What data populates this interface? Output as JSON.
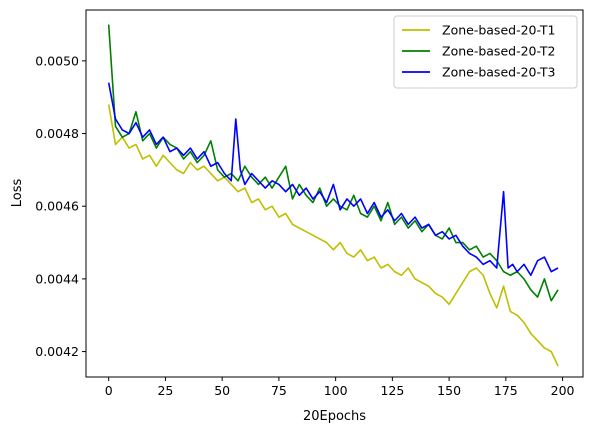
{
  "chart_data": {
    "type": "line",
    "xlabel": "20Epochs",
    "ylabel": "Loss",
    "xlim": [
      -10,
      209
    ],
    "ylim": [
      0.00413,
      0.00514
    ],
    "x_ticks": [
      0,
      25,
      50,
      75,
      100,
      125,
      150,
      175,
      200
    ],
    "y_ticks": [
      0.0042,
      0.0044,
      0.0046,
      0.0048,
      0.005
    ],
    "x_tick_labels": [
      "0",
      "25",
      "50",
      "75",
      "100",
      "125",
      "150",
      "175",
      "200"
    ],
    "y_tick_labels": [
      "0.0042",
      "0.0044",
      "0.0046",
      "0.0048",
      "0.0050"
    ],
    "grid": false,
    "legend_position": "top-right",
    "series": [
      {
        "name": "Zone-based-20-T1",
        "color": "#bfbf00",
        "points": [
          [
            0,
            0.00488
          ],
          [
            3,
            0.00477
          ],
          [
            6,
            0.00479
          ],
          [
            9,
            0.00476
          ],
          [
            12,
            0.00477
          ],
          [
            15,
            0.00473
          ],
          [
            18,
            0.00474
          ],
          [
            21,
            0.00471
          ],
          [
            24,
            0.00474
          ],
          [
            27,
            0.00472
          ],
          [
            30,
            0.0047
          ],
          [
            33,
            0.00469
          ],
          [
            36,
            0.00472
          ],
          [
            39,
            0.0047
          ],
          [
            42,
            0.00471
          ],
          [
            45,
            0.00469
          ],
          [
            48,
            0.00467
          ],
          [
            51,
            0.00468
          ],
          [
            54,
            0.00466
          ],
          [
            57,
            0.00464
          ],
          [
            60,
            0.00465
          ],
          [
            63,
            0.00461
          ],
          [
            66,
            0.00462
          ],
          [
            69,
            0.00459
          ],
          [
            72,
            0.0046
          ],
          [
            75,
            0.00457
          ],
          [
            78,
            0.00458
          ],
          [
            81,
            0.00455
          ],
          [
            84,
            0.00454
          ],
          [
            87,
            0.00453
          ],
          [
            90,
            0.00452
          ],
          [
            93,
            0.00451
          ],
          [
            96,
            0.0045
          ],
          [
            99,
            0.00448
          ],
          [
            102,
            0.0045
          ],
          [
            105,
            0.00447
          ],
          [
            108,
            0.00446
          ],
          [
            111,
            0.00448
          ],
          [
            114,
            0.00445
          ],
          [
            117,
            0.00446
          ],
          [
            120,
            0.00443
          ],
          [
            123,
            0.00444
          ],
          [
            126,
            0.00442
          ],
          [
            129,
            0.00441
          ],
          [
            132,
            0.00443
          ],
          [
            135,
            0.0044
          ],
          [
            138,
            0.00439
          ],
          [
            141,
            0.00438
          ],
          [
            144,
            0.00436
          ],
          [
            147,
            0.00435
          ],
          [
            150,
            0.00433
          ],
          [
            153,
            0.00436
          ],
          [
            156,
            0.00439
          ],
          [
            159,
            0.00442
          ],
          [
            162,
            0.00443
          ],
          [
            165,
            0.00441
          ],
          [
            168,
            0.00436
          ],
          [
            171,
            0.00432
          ],
          [
            174,
            0.00438
          ],
          [
            177,
            0.00431
          ],
          [
            180,
            0.0043
          ],
          [
            183,
            0.00428
          ],
          [
            186,
            0.00425
          ],
          [
            189,
            0.00423
          ],
          [
            192,
            0.00421
          ],
          [
            195,
            0.0042
          ],
          [
            198,
            0.00416
          ]
        ]
      },
      {
        "name": "Zone-based-20-T2",
        "color": "#008000",
        "points": [
          [
            0,
            0.0051
          ],
          [
            3,
            0.00482
          ],
          [
            6,
            0.00479
          ],
          [
            9,
            0.0048
          ],
          [
            12,
            0.00486
          ],
          [
            15,
            0.00478
          ],
          [
            18,
            0.0048
          ],
          [
            21,
            0.00476
          ],
          [
            24,
            0.00479
          ],
          [
            27,
            0.00477
          ],
          [
            30,
            0.00476
          ],
          [
            33,
            0.00473
          ],
          [
            36,
            0.00475
          ],
          [
            39,
            0.00472
          ],
          [
            42,
            0.00474
          ],
          [
            45,
            0.00478
          ],
          [
            48,
            0.0047
          ],
          [
            51,
            0.00468
          ],
          [
            54,
            0.00469
          ],
          [
            57,
            0.00467
          ],
          [
            60,
            0.00471
          ],
          [
            63,
            0.00468
          ],
          [
            66,
            0.00466
          ],
          [
            69,
            0.00468
          ],
          [
            72,
            0.00465
          ],
          [
            75,
            0.00468
          ],
          [
            78,
            0.00471
          ],
          [
            81,
            0.00462
          ],
          [
            84,
            0.00466
          ],
          [
            87,
            0.00463
          ],
          [
            90,
            0.00461
          ],
          [
            93,
            0.00465
          ],
          [
            96,
            0.0046
          ],
          [
            99,
            0.00462
          ],
          [
            102,
            0.0046
          ],
          [
            105,
            0.00459
          ],
          [
            108,
            0.00463
          ],
          [
            111,
            0.00458
          ],
          [
            114,
            0.00457
          ],
          [
            117,
            0.0046
          ],
          [
            120,
            0.00456
          ],
          [
            123,
            0.00461
          ],
          [
            126,
            0.00455
          ],
          [
            129,
            0.00457
          ],
          [
            132,
            0.00454
          ],
          [
            135,
            0.00456
          ],
          [
            138,
            0.00453
          ],
          [
            141,
            0.00455
          ],
          [
            144,
            0.00452
          ],
          [
            147,
            0.00451
          ],
          [
            150,
            0.00454
          ],
          [
            153,
            0.0045
          ],
          [
            156,
            0.0045
          ],
          [
            159,
            0.00448
          ],
          [
            162,
            0.00449
          ],
          [
            165,
            0.00446
          ],
          [
            168,
            0.00447
          ],
          [
            171,
            0.00445
          ],
          [
            174,
            0.00442
          ],
          [
            177,
            0.00441
          ],
          [
            180,
            0.00442
          ],
          [
            183,
            0.0044
          ],
          [
            186,
            0.00437
          ],
          [
            189,
            0.00435
          ],
          [
            192,
            0.0044
          ],
          [
            195,
            0.00434
          ],
          [
            198,
            0.00437
          ]
        ]
      },
      {
        "name": "Zone-based-20-T3",
        "color": "#0000ff",
        "points": [
          [
            0,
            0.00494
          ],
          [
            3,
            0.00484
          ],
          [
            6,
            0.00481
          ],
          [
            9,
            0.0048
          ],
          [
            12,
            0.00483
          ],
          [
            15,
            0.00479
          ],
          [
            18,
            0.00481
          ],
          [
            21,
            0.00477
          ],
          [
            24,
            0.00479
          ],
          [
            27,
            0.00475
          ],
          [
            30,
            0.00476
          ],
          [
            33,
            0.00474
          ],
          [
            36,
            0.00476
          ],
          [
            39,
            0.00473
          ],
          [
            42,
            0.00475
          ],
          [
            45,
            0.00471
          ],
          [
            48,
            0.00472
          ],
          [
            51,
            0.00469
          ],
          [
            54,
            0.00467
          ],
          [
            56,
            0.00484
          ],
          [
            58,
            0.0047
          ],
          [
            60,
            0.00466
          ],
          [
            63,
            0.00469
          ],
          [
            66,
            0.00467
          ],
          [
            69,
            0.00465
          ],
          [
            72,
            0.00467
          ],
          [
            75,
            0.00466
          ],
          [
            78,
            0.00464
          ],
          [
            81,
            0.00466
          ],
          [
            84,
            0.00463
          ],
          [
            87,
            0.00465
          ],
          [
            90,
            0.00462
          ],
          [
            93,
            0.00464
          ],
          [
            96,
            0.00461
          ],
          [
            99,
            0.00466
          ],
          [
            102,
            0.00459
          ],
          [
            105,
            0.00462
          ],
          [
            108,
            0.0046
          ],
          [
            111,
            0.00462
          ],
          [
            114,
            0.00458
          ],
          [
            117,
            0.00461
          ],
          [
            120,
            0.00457
          ],
          [
            123,
            0.00459
          ],
          [
            126,
            0.00456
          ],
          [
            129,
            0.00458
          ],
          [
            132,
            0.00455
          ],
          [
            135,
            0.00457
          ],
          [
            138,
            0.00454
          ],
          [
            141,
            0.00455
          ],
          [
            144,
            0.00452
          ],
          [
            147,
            0.00453
          ],
          [
            150,
            0.00451
          ],
          [
            153,
            0.00452
          ],
          [
            156,
            0.00449
          ],
          [
            159,
            0.00447
          ],
          [
            162,
            0.00446
          ],
          [
            165,
            0.00444
          ],
          [
            168,
            0.00445
          ],
          [
            171,
            0.00443
          ],
          [
            174,
            0.00464
          ],
          [
            176,
            0.00443
          ],
          [
            178,
            0.00444
          ],
          [
            180,
            0.00442
          ],
          [
            183,
            0.00444
          ],
          [
            186,
            0.00441
          ],
          [
            189,
            0.00445
          ],
          [
            192,
            0.00446
          ],
          [
            195,
            0.00442
          ],
          [
            198,
            0.00443
          ]
        ]
      }
    ]
  }
}
